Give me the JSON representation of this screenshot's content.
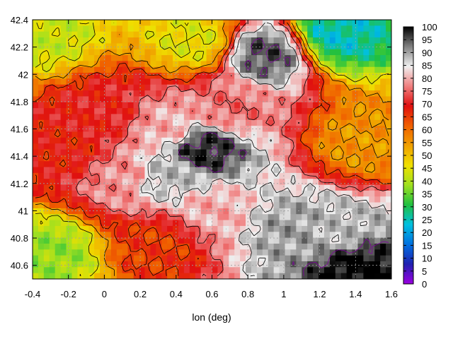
{
  "chart_data": {
    "type": "heatmap",
    "title": "",
    "xlabel": "lon (deg)",
    "ylabel": "",
    "xlim": [
      -0.4,
      1.6
    ],
    "ylim": [
      40.5,
      42.4
    ],
    "x_ticks": [
      "-0.4",
      "-0.2",
      "0",
      "0.2",
      "0.4",
      "0.6",
      "0.8",
      "1",
      "1.2",
      "1.4",
      "1.6"
    ],
    "y_ticks": [
      "40.6",
      "40.8",
      "41",
      "41.2",
      "41.4",
      "41.6",
      "41.8",
      "42",
      "42.2",
      "42.4"
    ],
    "colorbar": {
      "range": [
        0,
        100
      ],
      "ticks": [
        "0",
        "5",
        "10",
        "15",
        "20",
        "25",
        "30",
        "35",
        "40",
        "45",
        "50",
        "55",
        "60",
        "65",
        "70",
        "75",
        "80",
        "85",
        "90",
        "95",
        "100"
      ],
      "colormap": [
        "#9b00e0",
        "#2020b0",
        "#0070e0",
        "#00c0e0",
        "#20c040",
        "#a0e020",
        "#f0e000",
        "#f0a000",
        "#f06000",
        "#e01010",
        "#f08080",
        "#f0f0f0",
        "#808080",
        "#000000"
      ]
    },
    "grid": true,
    "legend_position": "right",
    "hotspots": [
      {
        "lon": 0.55,
        "lat": 41.45,
        "value": 98
      },
      {
        "lon": 0.9,
        "lat": 42.15,
        "value": 95
      },
      {
        "lon": 1.4,
        "lat": 40.58,
        "value": 100
      },
      {
        "lon": 1.05,
        "lat": 40.85,
        "value": 90
      },
      {
        "lon": 1.3,
        "lat": 40.85,
        "value": 88
      },
      {
        "lon": 0.35,
        "lat": 41.25,
        "value": 88
      },
      {
        "lon": 0.35,
        "lat": 41.6,
        "value": 80
      },
      {
        "lon": 0.7,
        "lat": 41.75,
        "value": 76
      },
      {
        "lon": 0.1,
        "lat": 41.25,
        "value": 78
      },
      {
        "lon": 0.6,
        "lat": 41.0,
        "value": 80
      },
      {
        "lon": -0.2,
        "lat": 41.45,
        "value": 68
      },
      {
        "lon": 0.0,
        "lat": 41.7,
        "value": 70
      },
      {
        "lon": -0.3,
        "lat": 40.7,
        "value": 38
      },
      {
        "lon": -0.35,
        "lat": 42.3,
        "value": 42
      },
      {
        "lon": 1.3,
        "lat": 42.3,
        "value": 25
      },
      {
        "lon": 1.45,
        "lat": 41.5,
        "value": 55
      },
      {
        "lon": 0.3,
        "lat": 40.75,
        "value": 65
      },
      {
        "lon": 0.5,
        "lat": 42.25,
        "value": 45
      }
    ]
  }
}
